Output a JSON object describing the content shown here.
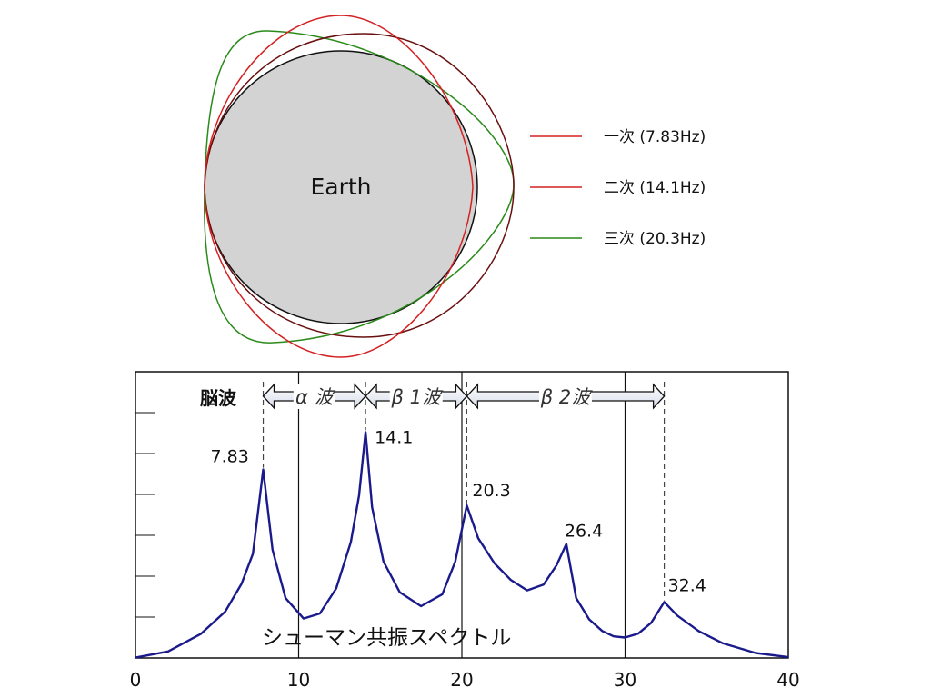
{
  "diagram": {
    "earth_label": "Earth",
    "legend": [
      {
        "label": "一次 (7.83Hz)",
        "color": "#d42020"
      },
      {
        "label": "二次 (14.1Hz)",
        "color": "#d42020"
      },
      {
        "label": "三次 (20.3Hz)",
        "color": "#2a8a1a"
      }
    ],
    "colors": {
      "earth_fill": "#d3d3d3",
      "mode1": "#d42020",
      "mode2": "#6a0f0f",
      "mode3": "#2a8a1a"
    }
  },
  "chart_data": {
    "type": "line",
    "title": "シューマン共振スペクトル",
    "xlabel": "",
    "ylabel": "",
    "xlim": [
      0,
      40
    ],
    "x_ticks": [
      "0",
      "10",
      "20",
      "30",
      "40"
    ],
    "vertical_lines": [
      10,
      20,
      30
    ],
    "grid": false,
    "series": [
      {
        "color": "#1a1a8c",
        "x": [
          0,
          2,
          4,
          5.5,
          6.5,
          7.2,
          7.83,
          8.4,
          9.2,
          10.3,
          11.3,
          12.3,
          13.2,
          13.7,
          14.1,
          14.5,
          15.2,
          16.2,
          17.5,
          18.8,
          19.6,
          20.3,
          21,
          22,
          23,
          24,
          25,
          25.8,
          26.4,
          27,
          27.8,
          28.6,
          29.3,
          30,
          30.8,
          31.6,
          32.4,
          33.2,
          34.5,
          36,
          38,
          40
        ],
        "y": [
          0.1,
          1.7,
          6.2,
          12,
          19.2,
          27,
          48.8,
          28,
          15.5,
          10.2,
          11.5,
          18,
          30,
          42,
          58.5,
          39,
          25,
          17,
          13.4,
          16.5,
          25,
          39.5,
          31,
          24.5,
          20.2,
          17.5,
          19,
          24,
          29.5,
          15.5,
          10,
          7,
          5.6,
          5.3,
          6.3,
          9.1,
          14.5,
          11,
          7,
          3.8,
          1.3,
          0.2
        ]
      }
    ],
    "peaks": [
      {
        "x": 7.83,
        "label": "7.83"
      },
      {
        "x": 14.1,
        "label": "14.1"
      },
      {
        "x": 20.3,
        "label": "20.3"
      },
      {
        "x": 26.4,
        "label": "26.4"
      },
      {
        "x": 32.4,
        "label": "32.4"
      }
    ],
    "brain_waves": {
      "label": "脳波",
      "bands": [
        {
          "label": "α 波",
          "from": 7.83,
          "to": 14.1
        },
        {
          "label": "β 1波",
          "from": 14.1,
          "to": 20.3
        },
        {
          "label": "β 2波",
          "from": 20.3,
          "to": 32.4
        }
      ]
    }
  }
}
